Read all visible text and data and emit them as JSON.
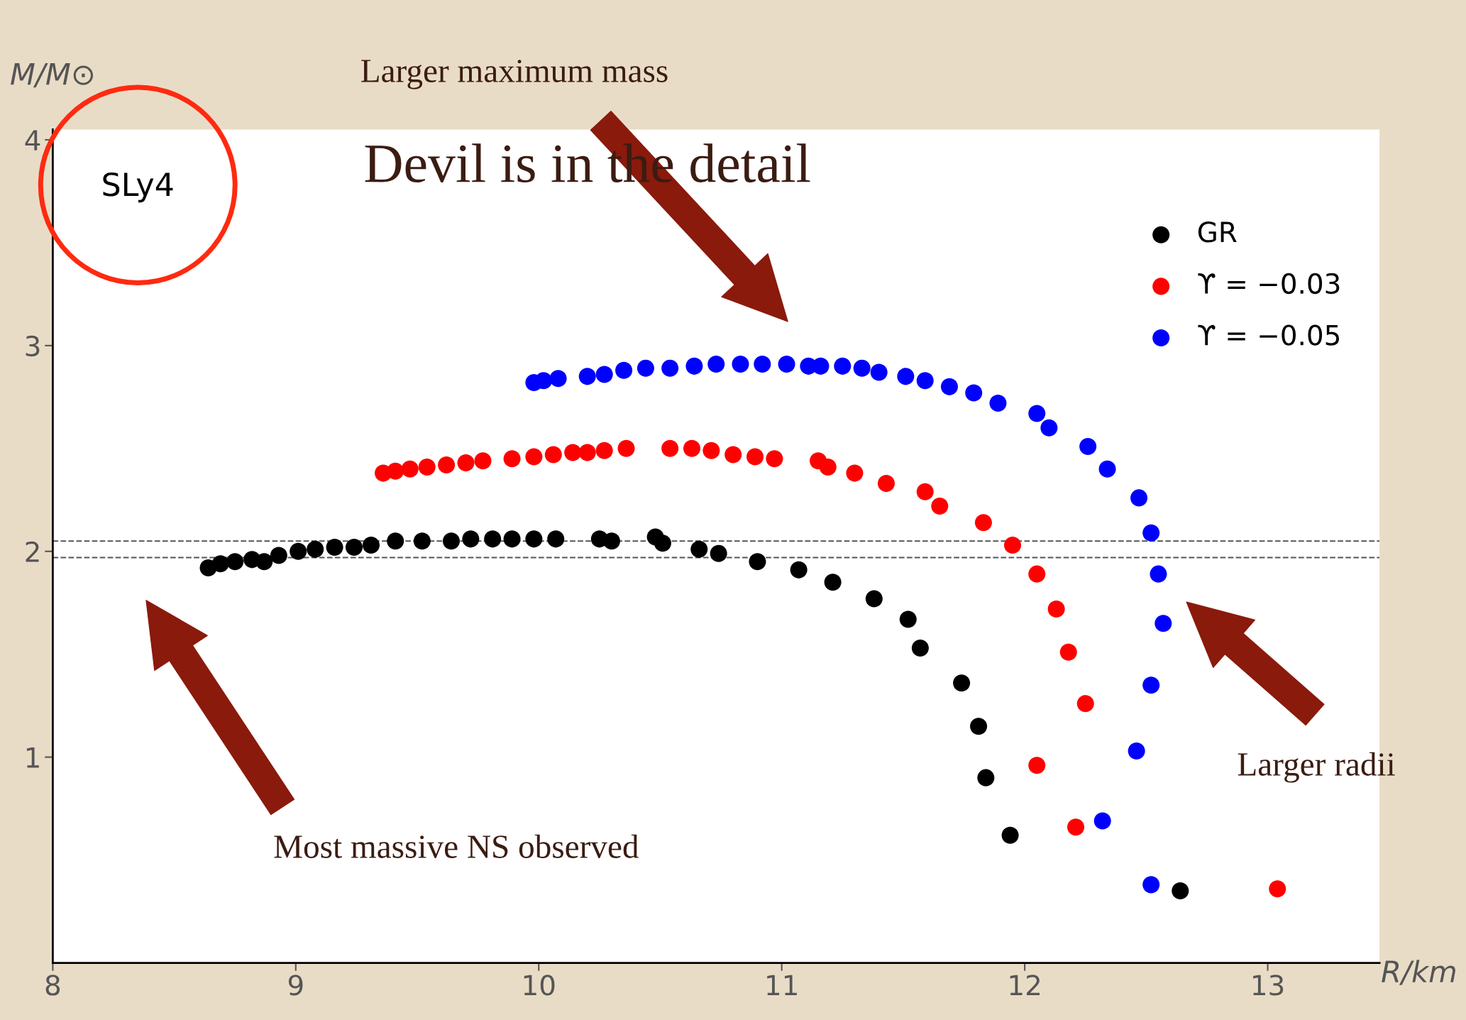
{
  "chart_data": {
    "type": "scatter",
    "xlabel": "R/km",
    "ylabel": "M/M⊙",
    "xlim": [
      8,
      13.46
    ],
    "ylim": [
      0,
      4.05
    ],
    "xticks": [
      8,
      9,
      10,
      11,
      12,
      13
    ],
    "yticks": [
      1,
      2,
      3,
      4
    ],
    "grid": false,
    "legend": "top right",
    "marker": "circle",
    "ref_lines": [
      {
        "axis": "y",
        "value": 2.05,
        "color": "#555555",
        "line_style": "dashed"
      },
      {
        "axis": "y",
        "value": 1.97,
        "color": "#555555",
        "line_style": "dashed"
      }
    ],
    "annotations": [
      "SLy4",
      "Larger maximum mass",
      "Devil is in the detail",
      "Most massive NS observed",
      "Larger radii"
    ],
    "series": [
      {
        "name": "GR",
        "color": "#000000",
        "x": [
          8.64,
          8.69,
          8.75,
          8.82,
          8.87,
          8.93,
          9.01,
          9.08,
          9.16,
          9.24,
          9.31,
          9.41,
          9.52,
          9.64,
          9.72,
          9.81,
          9.89,
          9.98,
          10.07,
          10.25,
          10.3,
          10.48,
          10.51,
          10.66,
          10.74,
          10.9,
          11.07,
          11.21,
          11.38,
          11.52,
          11.57,
          11.74,
          11.81,
          11.84,
          11.94,
          12.64
        ],
        "values": [
          1.92,
          1.94,
          1.95,
          1.96,
          1.95,
          1.98,
          2.0,
          2.01,
          2.02,
          2.02,
          2.03,
          2.05,
          2.05,
          2.05,
          2.06,
          2.06,
          2.06,
          2.06,
          2.06,
          2.06,
          2.05,
          2.07,
          2.04,
          2.01,
          1.99,
          1.95,
          1.91,
          1.85,
          1.77,
          1.67,
          1.53,
          1.36,
          1.15,
          0.9,
          0.62,
          0.35
        ]
      },
      {
        "name": "ϒ = −0.03",
        "color": "#ff0000",
        "x": [
          9.36,
          9.41,
          9.47,
          9.54,
          9.62,
          9.7,
          9.77,
          9.89,
          9.98,
          10.06,
          10.14,
          10.2,
          10.27,
          10.36,
          10.54,
          10.63,
          10.71,
          10.8,
          10.89,
          10.97,
          11.15,
          11.19,
          11.3,
          11.43,
          11.59,
          11.65,
          11.83,
          11.95,
          12.05,
          12.13,
          12.18,
          12.25,
          12.05,
          12.21,
          13.04
        ],
        "values": [
          2.38,
          2.39,
          2.4,
          2.41,
          2.42,
          2.43,
          2.44,
          2.45,
          2.46,
          2.47,
          2.48,
          2.48,
          2.49,
          2.5,
          2.5,
          2.5,
          2.49,
          2.47,
          2.46,
          2.45,
          2.44,
          2.41,
          2.38,
          2.33,
          2.29,
          2.22,
          2.14,
          2.03,
          1.89,
          1.72,
          1.51,
          1.26,
          0.96,
          0.66,
          0.36
        ]
      },
      {
        "name": "ϒ = −0.05",
        "color": "#0000ff",
        "x": [
          9.98,
          10.02,
          10.08,
          10.2,
          10.27,
          10.35,
          10.44,
          10.54,
          10.64,
          10.73,
          10.83,
          10.92,
          11.02,
          11.11,
          11.16,
          11.25,
          11.33,
          11.4,
          11.51,
          11.59,
          11.69,
          11.79,
          11.89,
          12.05,
          12.1,
          12.26,
          12.34,
          12.47,
          12.52,
          12.55,
          12.57,
          12.52,
          12.46,
          12.32,
          12.52
        ],
        "values": [
          2.82,
          2.83,
          2.84,
          2.85,
          2.86,
          2.88,
          2.89,
          2.89,
          2.9,
          2.91,
          2.91,
          2.91,
          2.91,
          2.9,
          2.9,
          2.9,
          2.89,
          2.87,
          2.85,
          2.83,
          2.8,
          2.77,
          2.72,
          2.67,
          2.6,
          2.51,
          2.4,
          2.26,
          2.09,
          1.89,
          1.65,
          1.35,
          1.03,
          0.69,
          0.38
        ]
      }
    ]
  }
}
